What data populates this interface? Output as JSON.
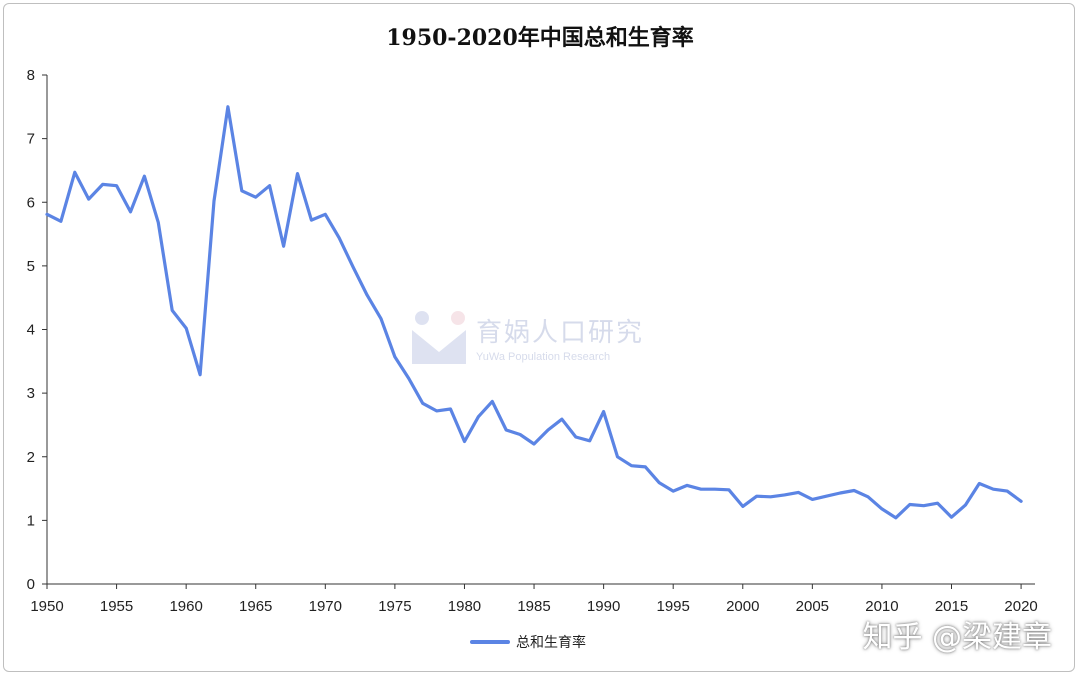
{
  "chart_data": {
    "type": "line",
    "title": "1950-2020年中国总和生育率",
    "xlabel": "",
    "ylabel": "",
    "xlim": [
      1950,
      2021
    ],
    "ylim": [
      0,
      8
    ],
    "x_ticks": [
      "1950",
      "1955",
      "1960",
      "1965",
      "1970",
      "1975",
      "1980",
      "1985",
      "1990",
      "1995",
      "2000",
      "2005",
      "2010",
      "2015",
      "2020"
    ],
    "y_ticks": [
      "0",
      "1",
      "2",
      "3",
      "4",
      "5",
      "6",
      "7",
      "8"
    ],
    "grid": false,
    "legend": "bottom",
    "color": "#5b84e4",
    "series": [
      {
        "name": "总和生育率",
        "x": [
          1950,
          1951,
          1952,
          1953,
          1954,
          1955,
          1956,
          1957,
          1958,
          1959,
          1960,
          1961,
          1962,
          1963,
          1964,
          1965,
          1966,
          1967,
          1968,
          1969,
          1970,
          1971,
          1972,
          1973,
          1974,
          1975,
          1976,
          1977,
          1978,
          1979,
          1980,
          1981,
          1982,
          1983,
          1984,
          1985,
          1986,
          1987,
          1988,
          1989,
          1990,
          1991,
          1992,
          1993,
          1994,
          1995,
          1996,
          1997,
          1998,
          1999,
          2000,
          2001,
          2002,
          2003,
          2004,
          2005,
          2006,
          2007,
          2008,
          2009,
          2010,
          2011,
          2012,
          2013,
          2014,
          2015,
          2016,
          2017,
          2018,
          2019,
          2020
        ],
        "values": [
          5.81,
          5.7,
          6.47,
          6.05,
          6.28,
          6.26,
          5.85,
          6.41,
          5.68,
          4.3,
          4.02,
          3.29,
          6.02,
          7.5,
          6.18,
          6.08,
          6.26,
          5.31,
          6.45,
          5.72,
          5.81,
          5.44,
          4.98,
          4.54,
          4.17,
          3.57,
          3.23,
          2.84,
          2.72,
          2.75,
          2.24,
          2.63,
          2.87,
          2.42,
          2.35,
          2.2,
          2.42,
          2.59,
          2.31,
          2.25,
          2.71,
          2.0,
          1.86,
          1.84,
          1.59,
          1.46,
          1.55,
          1.49,
          1.49,
          1.48,
          1.22,
          1.38,
          1.37,
          1.4,
          1.44,
          1.33,
          1.38,
          1.43,
          1.47,
          1.37,
          1.18,
          1.04,
          1.25,
          1.23,
          1.27,
          1.05,
          1.24,
          1.58,
          1.49,
          1.46,
          1.3
        ]
      }
    ]
  },
  "watermark": {
    "main": "育娲人口研究",
    "sub": "YuWa Population Research"
  },
  "attribution": "知乎 @梁建章"
}
